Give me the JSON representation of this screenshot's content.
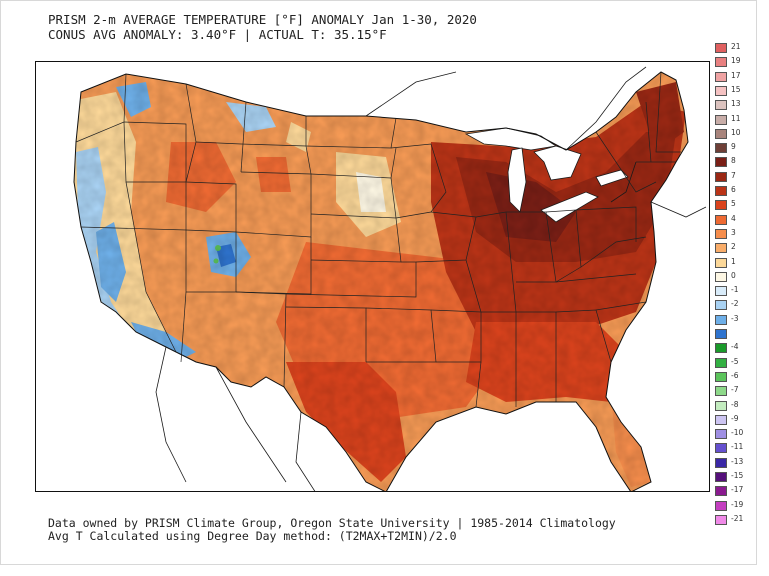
{
  "title": {
    "line1": "PRISM 2-m AVERAGE TEMPERATURE [°F] ANOMALY Jan 1-30, 2020",
    "line2": "CONUS AVG ANOMALY: 3.40°F | ACTUAL T: 35.15°F"
  },
  "footer": {
    "line1": "Data owned by PRISM Climate Group, Oregon State University | 1985-2014 Climatology",
    "line2": "Avg T Calculated using Degree Day method: (T2MAX+T2MIN)/2.0"
  },
  "colors": {
    "water": "#ffffff",
    "border": "#1a1a1a",
    "neg_light": "#cfe6f7",
    "neg_mid": "#6fb3e8",
    "neg_deep": "#2a6fc9",
    "green": "#5cc25c",
    "zero": "#fdf7dc",
    "pos_low": "#fbd18c",
    "pos_mid": "#f59a55",
    "pos_high": "#e8642b",
    "pos_vhigh": "#c9401c",
    "pos_extreme": "#8f2413"
  },
  "legend": [
    {
      "label": "21",
      "color": "#e06060"
    },
    {
      "label": "19",
      "color": "#e88080"
    },
    {
      "label": "17",
      "color": "#efa3a3"
    },
    {
      "label": "15",
      "color": "#f5c2c2"
    },
    {
      "label": "13",
      "color": "#dcc3bf"
    },
    {
      "label": "11",
      "color": "#c8ada8"
    },
    {
      "label": "10",
      "color": "#a8847c"
    },
    {
      "label": "9",
      "color": "#6e3f37"
    },
    {
      "label": "8",
      "color": "#7a1f16"
    },
    {
      "label": "7",
      "color": "#9a2814"
    },
    {
      "label": "6",
      "color": "#bb3417"
    },
    {
      "label": "5",
      "color": "#da431d"
    },
    {
      "label": "4",
      "color": "#ee6a33"
    },
    {
      "label": "3",
      "color": "#f58d4c"
    },
    {
      "label": "2",
      "color": "#f9ad6a"
    },
    {
      "label": "1",
      "color": "#fcd899"
    },
    {
      "label": "0",
      "color": "#fdf7e4"
    },
    {
      "label": "-1",
      "color": "#d9ecfa"
    },
    {
      "label": "-2",
      "color": "#a9d2f3"
    },
    {
      "label": "-3",
      "color": "#6eafe8"
    },
    {
      "label": "",
      "color": "#2f74cf"
    },
    {
      "label": "-4",
      "color": "#1a9a2a"
    },
    {
      "label": "-5",
      "color": "#33b043"
    },
    {
      "label": "-6",
      "color": "#5cc45c"
    },
    {
      "label": "-7",
      "color": "#8ed98a"
    },
    {
      "label": "-8",
      "color": "#c3ecbf"
    },
    {
      "label": "-9",
      "color": "#cdc5f2"
    },
    {
      "label": "-10",
      "color": "#9f8fe3"
    },
    {
      "label": "-11",
      "color": "#6550cf"
    },
    {
      "label": "-13",
      "color": "#3a28a6"
    },
    {
      "label": "-15",
      "color": "#55107a"
    },
    {
      "label": "-17",
      "color": "#8a1a8f"
    },
    {
      "label": "-19",
      "color": "#c43fc0"
    },
    {
      "label": "-21",
      "color": "#f08ae8"
    }
  ]
}
